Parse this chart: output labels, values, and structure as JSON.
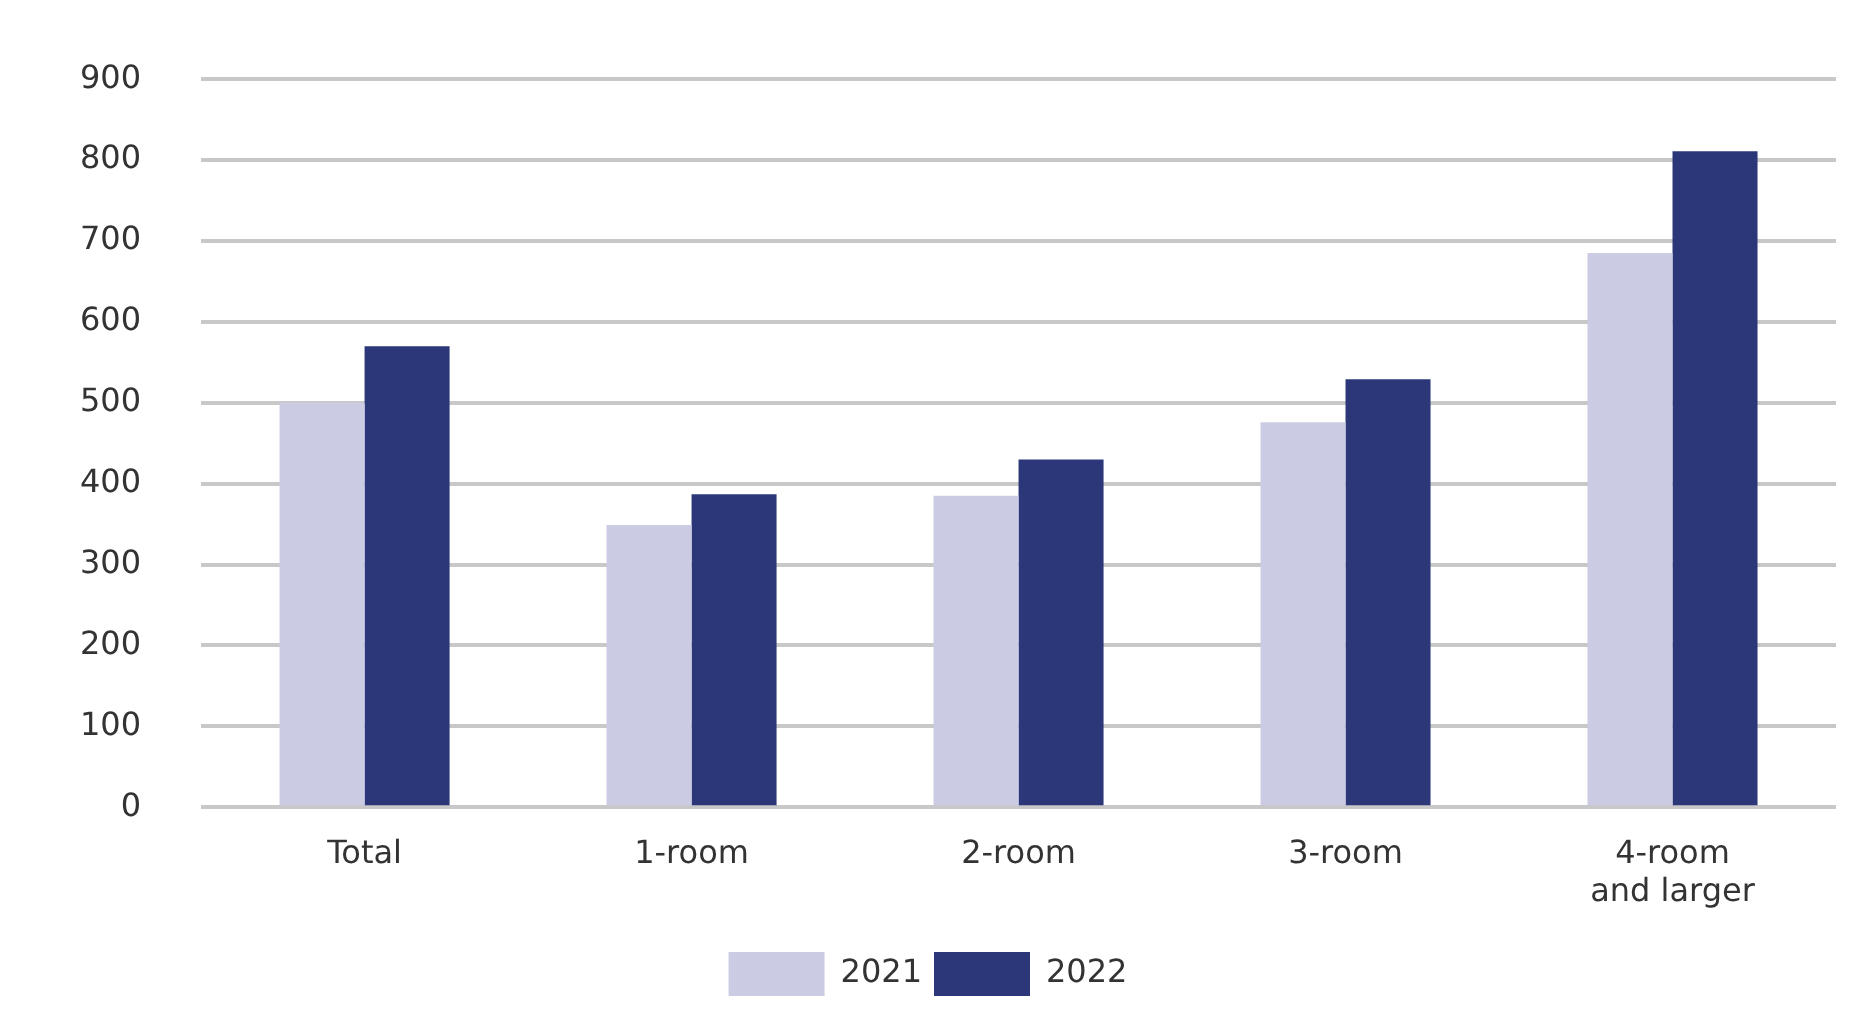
{
  "chart_data": {
    "type": "bar",
    "categories": [
      "Total",
      "1-room",
      "2-room",
      "3-room",
      "4-room and larger"
    ],
    "series": [
      {
        "name": "2021",
        "color": "#cbcce3",
        "values": [
          500,
          349,
          385,
          476,
          685
        ]
      },
      {
        "name": "2022",
        "color": "#2c377a",
        "values": [
          570,
          387,
          430,
          529,
          811
        ]
      }
    ],
    "ylim": [
      0,
      900
    ],
    "yticks": [
      0,
      100,
      200,
      300,
      400,
      500,
      600,
      700,
      800,
      900
    ],
    "grid": "y",
    "legend": "bottom"
  }
}
